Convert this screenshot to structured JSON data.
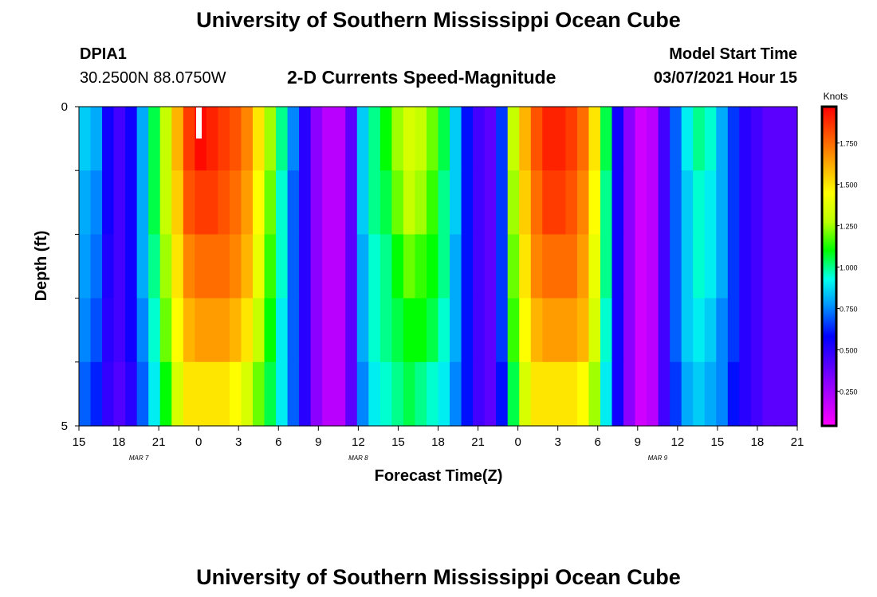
{
  "header": {
    "title": "University of Southern Mississippi Ocean Cube",
    "station_id": "DPIA1",
    "station_coords": "30.2500N 88.0750W",
    "subtitle": "2-D Currents Speed-Magnitude",
    "model_start_label": "Model Start Time",
    "model_start_value": "03/07/2021 Hour 15"
  },
  "footer": {
    "title": "University of Southern Mississippi Ocean Cube"
  },
  "chart_data": {
    "type": "heatmap",
    "title": "2-D Currents Speed-Magnitude",
    "xlabel": "Forecast Time(Z)",
    "ylabel": "Depth (ft)",
    "x_tick_labels": [
      "15",
      "18",
      "21",
      "0",
      "3",
      "6",
      "9",
      "12",
      "15",
      "18",
      "21",
      "0",
      "3",
      "6",
      "9",
      "12",
      "15",
      "18",
      "21"
    ],
    "y_tick_labels": [
      "0",
      "5"
    ],
    "y_range": [
      0,
      5
    ],
    "x_hours": [
      0,
      54
    ],
    "date_labels": [
      {
        "text": "MAR 7",
        "hour": 4.5
      },
      {
        "text": "MAR 8",
        "hour": 21
      },
      {
        "text": "MAR 9",
        "hour": 43.5
      }
    ],
    "colorbar": {
      "title": "Knots",
      "ticks": [
        "0.250",
        "0.500",
        "0.750",
        "1.000",
        "1.250",
        "1.500",
        "1.750"
      ],
      "tick_values": [
        0.25,
        0.5,
        0.75,
        1.0,
        1.25,
        1.5,
        1.75
      ],
      "range": [
        0.04,
        1.97
      ]
    },
    "depth_layers": 5,
    "speed_knots_by_layer": [
      [
        0.85,
        0.8,
        0.55,
        0.45,
        0.55,
        0.8,
        1.05,
        1.3,
        1.6,
        1.85,
        1.95,
        1.9,
        1.85,
        1.8,
        1.7,
        1.5,
        1.25,
        1.0,
        0.75,
        0.5,
        0.3,
        0.2,
        0.2,
        0.4,
        0.85,
        1.0,
        1.1,
        1.25,
        1.35,
        1.3,
        1.2,
        1.05,
        0.85,
        0.6,
        0.45,
        0.4,
        0.65,
        1.3,
        1.6,
        1.8,
        1.9,
        1.9,
        1.85,
        1.75,
        1.5,
        1.05,
        0.55,
        0.3,
        0.15,
        0.2,
        0.45,
        0.7,
        0.9,
        1.0,
        0.95,
        0.8,
        0.65,
        0.5,
        0.45,
        0.4,
        0.4,
        0.4
      ],
      [
        0.8,
        0.75,
        0.55,
        0.45,
        0.55,
        0.8,
        1.05,
        1.3,
        1.55,
        1.8,
        1.85,
        1.85,
        1.8,
        1.75,
        1.65,
        1.45,
        1.2,
        0.95,
        0.7,
        0.5,
        0.3,
        0.2,
        0.2,
        0.4,
        0.85,
        1.0,
        1.05,
        1.2,
        1.3,
        1.25,
        1.15,
        1.0,
        0.85,
        0.6,
        0.45,
        0.4,
        0.65,
        1.25,
        1.55,
        1.75,
        1.85,
        1.85,
        1.8,
        1.7,
        1.45,
        1.0,
        0.55,
        0.3,
        0.15,
        0.2,
        0.45,
        0.7,
        0.85,
        0.95,
        0.9,
        0.8,
        0.65,
        0.5,
        0.45,
        0.4,
        0.4,
        0.4
      ],
      [
        0.78,
        0.72,
        0.52,
        0.45,
        0.55,
        0.8,
        1.0,
        1.25,
        1.5,
        1.7,
        1.75,
        1.75,
        1.75,
        1.7,
        1.6,
        1.4,
        1.15,
        0.95,
        0.7,
        0.5,
        0.3,
        0.2,
        0.2,
        0.4,
        0.8,
        0.95,
        1.0,
        1.1,
        1.2,
        1.15,
        1.1,
        1.0,
        0.8,
        0.6,
        0.45,
        0.4,
        0.65,
        1.2,
        1.5,
        1.7,
        1.75,
        1.75,
        1.75,
        1.65,
        1.4,
        1.0,
        0.55,
        0.3,
        0.15,
        0.2,
        0.45,
        0.7,
        0.85,
        0.95,
        0.9,
        0.8,
        0.65,
        0.5,
        0.45,
        0.4,
        0.4,
        0.4
      ],
      [
        0.75,
        0.68,
        0.5,
        0.45,
        0.55,
        0.75,
        0.95,
        1.2,
        1.45,
        1.6,
        1.65,
        1.65,
        1.65,
        1.6,
        1.5,
        1.3,
        1.1,
        0.9,
        0.7,
        0.5,
        0.3,
        0.2,
        0.2,
        0.4,
        0.8,
        0.95,
        1.0,
        1.05,
        1.1,
        1.1,
        1.05,
        0.95,
        0.8,
        0.6,
        0.45,
        0.4,
        0.65,
        1.15,
        1.45,
        1.6,
        1.65,
        1.65,
        1.65,
        1.6,
        1.35,
        0.95,
        0.55,
        0.3,
        0.15,
        0.2,
        0.45,
        0.7,
        0.85,
        0.9,
        0.85,
        0.75,
        0.65,
        0.5,
        0.45,
        0.4,
        0.4,
        0.4
      ],
      [
        0.7,
        0.62,
        0.48,
        0.42,
        0.5,
        0.7,
        0.9,
        1.1,
        1.35,
        1.5,
        1.5,
        1.5,
        1.5,
        1.45,
        1.35,
        1.2,
        1.05,
        0.9,
        0.7,
        0.5,
        0.3,
        0.2,
        0.2,
        0.4,
        0.75,
        0.9,
        0.95,
        1.0,
        1.05,
        1.0,
        0.95,
        0.9,
        0.75,
        0.6,
        0.45,
        0.4,
        0.6,
        1.05,
        1.35,
        1.5,
        1.5,
        1.5,
        1.5,
        1.45,
        1.25,
        0.9,
        0.55,
        0.3,
        0.15,
        0.2,
        0.45,
        0.65,
        0.8,
        0.85,
        0.8,
        0.75,
        0.6,
        0.5,
        0.45,
        0.4,
        0.4,
        0.4
      ]
    ]
  }
}
